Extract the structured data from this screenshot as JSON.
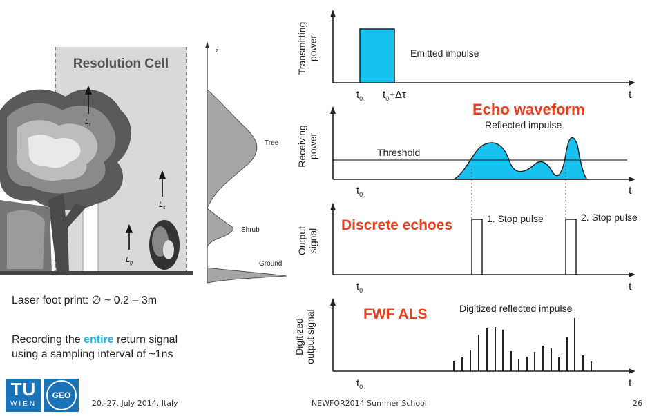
{
  "illustration": {
    "cell_label": "Resolution Cell",
    "heights": [
      "L",
      "L",
      "L"
    ],
    "subscripts": [
      "t",
      "s",
      "g"
    ],
    "profile_axis": "z",
    "profile_labels": [
      "Tree",
      "Shrub",
      "Ground"
    ]
  },
  "captions": {
    "footprint": "Laser foot print: ∅ ~ 0.2 – 3m",
    "recording_pre": "Recording the ",
    "recording_hl": "entire",
    "recording_post": " return signal",
    "recording_line2": "using a sampling interval of ~1ns"
  },
  "labels": {
    "echo_waveform": "Echo waveform",
    "discrete_echoes": "Discrete echoes",
    "fwf_als": "FWF ALS"
  },
  "plots": {
    "transmit_ylabel_1": "Transmitting",
    "transmit_ylabel_2": "power",
    "emitted": "Emitted impulse",
    "t0": "t",
    "t0_sub": "0",
    "t0_plus": "+Δτ",
    "t_axis": "t",
    "receive_ylabel_1": "Receiving",
    "receive_ylabel_2": "power",
    "threshold": "Threshold",
    "reflected": "Reflected impulse",
    "output_ylabel_1": "Output",
    "output_ylabel_2": "signal",
    "stop1": "1. Stop pulse",
    "stop2": "2. Stop pulse",
    "digit_ylabel_1": "Digitized",
    "digit_ylabel_2": "output signal",
    "digitized": "Digitized reflected impulse"
  },
  "colors": {
    "pulse_fill": "#17c1f0",
    "red_label": "#e8401c",
    "cell_fill": "#d9d9d9"
  },
  "footer": {
    "logo_tu": "TU",
    "logo_wien": "WIEN",
    "logo_geo": "GEO",
    "date": "20.-27. July 2014. Italy",
    "event": "NEWFOR2014 Summer School",
    "page": "26"
  }
}
